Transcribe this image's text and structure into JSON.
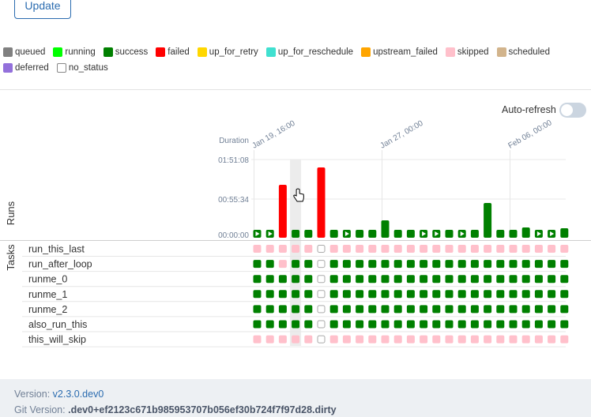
{
  "toolbar": {
    "update_label": "Update"
  },
  "legend": [
    {
      "label": "queued",
      "color": "#808080"
    },
    {
      "label": "running",
      "color": "#00ff00"
    },
    {
      "label": "success",
      "color": "#008000"
    },
    {
      "label": "failed",
      "color": "#ff0000"
    },
    {
      "label": "up_for_retry",
      "color": "#ffd700"
    },
    {
      "label": "up_for_reschedule",
      "color": "#40e0d0"
    },
    {
      "label": "upstream_failed",
      "color": "#ffa500"
    },
    {
      "label": "skipped",
      "color": "#ffc0cb"
    },
    {
      "label": "scheduled",
      "color": "#d2b48c"
    },
    {
      "label": "deferred",
      "color": "#9370db"
    },
    {
      "label": "no_status",
      "color": "#ffffff"
    }
  ],
  "auto_refresh": {
    "label": "Auto-refresh",
    "enabled": false
  },
  "chart": {
    "duration_label": "Duration",
    "runs_label": "Runs",
    "tasks_label": "Tasks",
    "y_ticks": [
      "01:51:08",
      "00:55:34",
      "00:00:00"
    ],
    "y_max_seconds": 6668,
    "date_labels": [
      "Jan 19, 16:00",
      "Jan 27, 00:00",
      "Feb 06, 00:00"
    ],
    "date_label_columns": [
      0,
      10,
      20
    ],
    "hover_column": 3
  },
  "chart_data": {
    "type": "bar",
    "title": "",
    "xlabel": "Runs",
    "ylabel": "Duration",
    "ylim_seconds": [
      0,
      6668
    ],
    "runs": [
      {
        "duration_s": 0,
        "state": "success",
        "icon": "play"
      },
      {
        "duration_s": 0,
        "state": "success",
        "icon": "play"
      },
      {
        "duration_s": 4500,
        "state": "failed",
        "icon": ""
      },
      {
        "duration_s": 0,
        "state": "success",
        "icon": ""
      },
      {
        "duration_s": 0,
        "state": "success",
        "icon": ""
      },
      {
        "duration_s": 6000,
        "state": "failed",
        "icon": ""
      },
      {
        "duration_s": 0,
        "state": "success",
        "icon": ""
      },
      {
        "duration_s": 0,
        "state": "success",
        "icon": "play"
      },
      {
        "duration_s": 0,
        "state": "success",
        "icon": ""
      },
      {
        "duration_s": 0,
        "state": "success",
        "icon": ""
      },
      {
        "duration_s": 1500,
        "state": "success",
        "icon": ""
      },
      {
        "duration_s": 0,
        "state": "success",
        "icon": ""
      },
      {
        "duration_s": 0,
        "state": "success",
        "icon": ""
      },
      {
        "duration_s": 0,
        "state": "success",
        "icon": "play"
      },
      {
        "duration_s": 0,
        "state": "success",
        "icon": "play"
      },
      {
        "duration_s": 0,
        "state": "success",
        "icon": ""
      },
      {
        "duration_s": 0,
        "state": "success",
        "icon": "play"
      },
      {
        "duration_s": 0,
        "state": "success",
        "icon": ""
      },
      {
        "duration_s": 2950,
        "state": "success",
        "icon": ""
      },
      {
        "duration_s": 0,
        "state": "success",
        "icon": ""
      },
      {
        "duration_s": 0,
        "state": "success",
        "icon": ""
      },
      {
        "duration_s": 900,
        "state": "success",
        "icon": ""
      },
      {
        "duration_s": 0,
        "state": "success",
        "icon": "play"
      },
      {
        "duration_s": 0,
        "state": "success",
        "icon": "play"
      },
      {
        "duration_s": 800,
        "state": "success",
        "icon": ""
      }
    ],
    "tasks": [
      {
        "name": "run_this_last",
        "states": "SSSSSNSSSSSSSSSSSSSSSSSSS"
      },
      {
        "name": "run_after_loop",
        "states": "GGSGGNGGGGGGGGGGGGGGGGGGG"
      },
      {
        "name": "runme_0",
        "states": "GGGGGNGGGGGGGGGGGGGGGGGGG"
      },
      {
        "name": "runme_1",
        "states": "GGGGGNGGGGGGGGGGGGGGGGGGG"
      },
      {
        "name": "runme_2",
        "states": "GGGGGNGGGGGGGGGGGGGGGGGGG"
      },
      {
        "name": "also_run_this",
        "states": "GGGGGNGGGGGGGGGGGGGGGGGGG"
      },
      {
        "name": "this_will_skip",
        "states": "SSSSSNSSSSSSSSSSSSSSSSSSS"
      }
    ],
    "state_codes": {
      "G": "success",
      "S": "skipped",
      "N": "no_status"
    }
  },
  "footer": {
    "version_label": "Version:",
    "version_value": "v2.3.0.dev0",
    "git_label": "Git Version:",
    "git_value": ".dev0+ef2123c671b985953707b056ef30b724f7f97d28.dirty"
  }
}
